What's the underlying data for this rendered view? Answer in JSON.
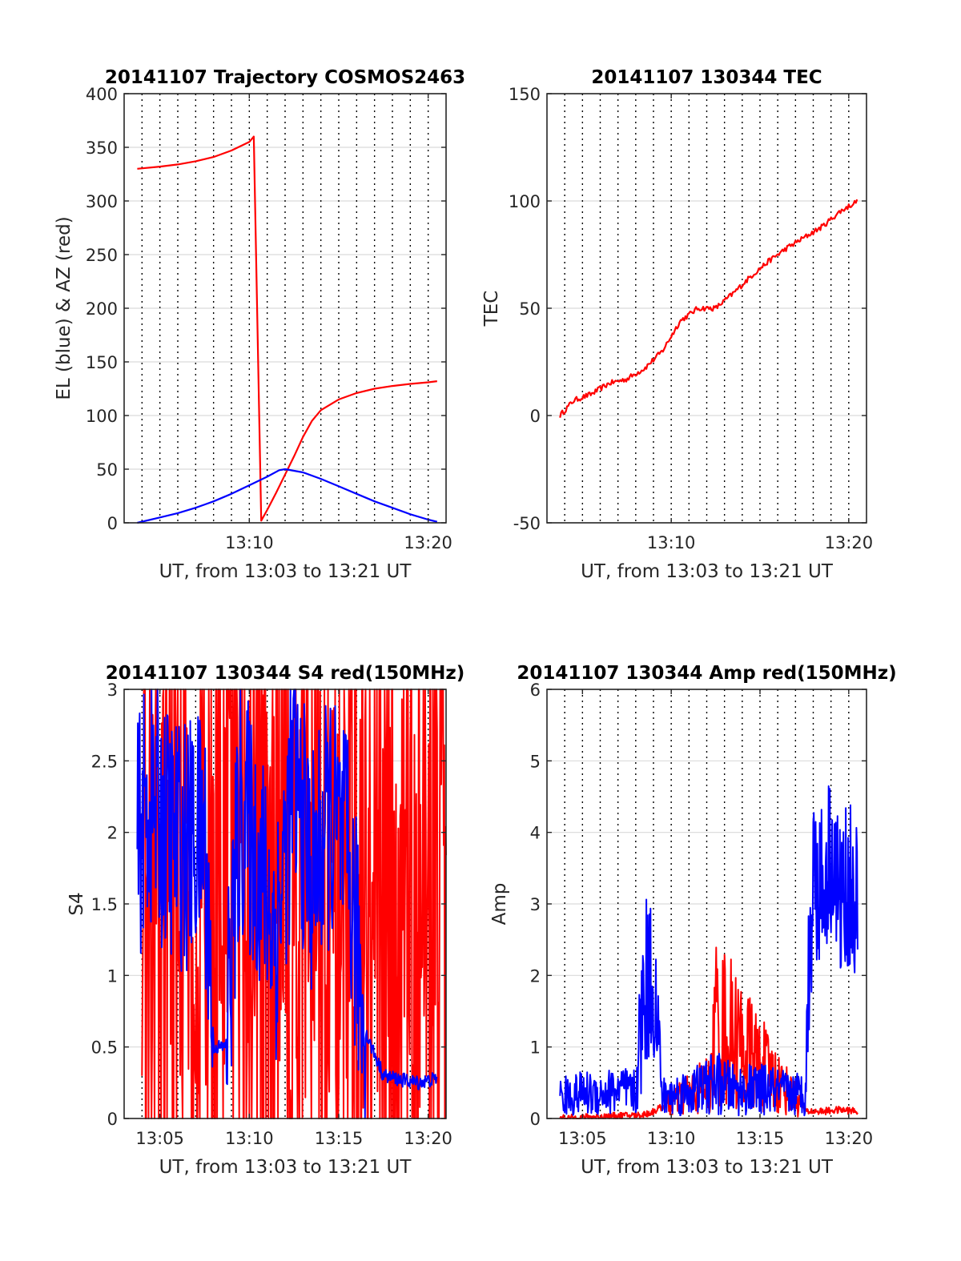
{
  "colors": {
    "red": "#ff0000",
    "blue": "#0000ff",
    "axis": "#262626",
    "grid": "#d9d9d9",
    "minor_grid": "#000000"
  },
  "chart_data": [
    {
      "type": "line",
      "title": "20141107 Trajectory COSMOS2463",
      "xlabel": "UT, from 13:03 to 13:21 UT",
      "ylabel": "EL (blue) & AZ (red)",
      "xlim": [
        "13:03",
        "13:21"
      ],
      "ylim": [
        0,
        400
      ],
      "yticks": [
        "0",
        "50",
        "100",
        "150",
        "200",
        "250",
        "300",
        "350",
        "400"
      ],
      "xticks": [
        "13:10",
        "13:20"
      ],
      "grid": true,
      "series": [
        {
          "color": "red",
          "values_desc": "azimuth",
          "x": [
            "13:03:44",
            "13:05:00",
            "13:06:00",
            "13:07:00",
            "13:08:00",
            "13:09:00",
            "13:10:00",
            "13:10:15",
            "13:10:40",
            "13:11:00",
            "13:11:30",
            "13:12:00",
            "13:12:30",
            "13:13:00",
            "13:13:30",
            "13:14:00",
            "13:15:00",
            "13:16:00",
            "13:17:00",
            "13:18:00",
            "13:19:00",
            "13:20:00",
            "13:20:30"
          ],
          "y": [
            330,
            332,
            334,
            337,
            341,
            347,
            355,
            360,
            2,
            12,
            28,
            45,
            62,
            80,
            95,
            105,
            115,
            121,
            125,
            127.5,
            129.5,
            131,
            132
          ]
        },
        {
          "color": "blue",
          "values_desc": "elevation",
          "x": [
            "13:03:44",
            "13:05:00",
            "13:06:00",
            "13:07:00",
            "13:08:00",
            "13:09:00",
            "13:10:00",
            "13:11:00",
            "13:11:40",
            "13:12:00",
            "13:13:00",
            "13:14:00",
            "13:15:00",
            "13:16:00",
            "13:17:00",
            "13:18:00",
            "13:19:00",
            "13:20:00",
            "13:20:30"
          ],
          "y": [
            0,
            5,
            9,
            14,
            20,
            27,
            35,
            43,
            49,
            50,
            47,
            41,
            34,
            27,
            20,
            14,
            8,
            3,
            1
          ]
        }
      ]
    },
    {
      "type": "line",
      "title": "20141107 130344 TEC",
      "xlabel": "UT, from 13:03 to 13:21 UT",
      "ylabel": "TEC",
      "xlim": [
        "13:03",
        "13:21"
      ],
      "ylim": [
        -50,
        150
      ],
      "yticks": [
        "-50",
        "0",
        "50",
        "100",
        "150"
      ],
      "xticks": [
        "13:10",
        "13:20"
      ],
      "grid": true,
      "series": [
        {
          "color": "red",
          "x": [
            "13:03:44",
            "13:04:30",
            "13:05:30",
            "13:06:30",
            "13:07:30",
            "13:08:30",
            "13:09:30",
            "13:10:30",
            "13:11:30",
            "13:12:30",
            "13:13:30",
            "13:14:30",
            "13:15:30",
            "13:16:30",
            "13:17:30",
            "13:18:30",
            "13:19:30",
            "13:20:30"
          ],
          "y": [
            0,
            7,
            10,
            15,
            17,
            22,
            30,
            44,
            50,
            50,
            57,
            65,
            72,
            78,
            83,
            88,
            95,
            100
          ]
        }
      ]
    },
    {
      "type": "line",
      "title": "20141107 130344 S4 red(150MHz)",
      "xlabel": "UT, from 13:03 to 13:21 UT",
      "ylabel": "S4",
      "xlim": [
        "13:03",
        "13:21"
      ],
      "ylim": [
        0,
        3
      ],
      "yticks": [
        "0",
        "0.5",
        "1",
        "1.5",
        "2",
        "2.5",
        "3"
      ],
      "xticks": [
        "13:05",
        "13:10",
        "13:15",
        "13:20"
      ],
      "grid": true,
      "series": [
        {
          "color": "red",
          "values_desc": "0 to 3 oscillation, densest 13:04-13:08 and 13:17-13:21",
          "x": [
            "13:04",
            "13:05",
            "13:06",
            "13:07",
            "13:08",
            "13:09",
            "13:10",
            "13:11",
            "13:12",
            "13:13",
            "13:14",
            "13:15",
            "13:16",
            "13:17",
            "13:18",
            "13:19",
            "13:20",
            "13:21"
          ],
          "y": [
            1.8,
            2.0,
            1.9,
            1.6,
            1.7,
            2.1,
            2.0,
            1.5,
            1.2,
            1.6,
            2.3,
            1.2,
            2.0,
            0.9,
            1.5,
            1.5,
            1.5,
            1.5
          ]
        },
        {
          "color": "blue",
          "x": [
            "13:03:44",
            "13:04:30",
            "13:05:30",
            "13:06:30",
            "13:07:30",
            "13:08:00",
            "13:08:40",
            "13:09:30",
            "13:10:30",
            "13:11:30",
            "13:12:30",
            "13:13:30",
            "13:14:30",
            "13:15:30",
            "13:16:30",
            "13:17:30",
            "13:18:30",
            "13:19:30",
            "13:20:30"
          ],
          "y": [
            2.0,
            2.2,
            2.0,
            1.9,
            2.0,
            0.5,
            0.5,
            2.2,
            1.8,
            1.3,
            2.4,
            1.7,
            2.1,
            1.8,
            0.6,
            0.3,
            0.27,
            0.25,
            0.28
          ]
        }
      ]
    },
    {
      "type": "line",
      "title": "20141107 130344 Amp red(150MHz)",
      "xlabel": "UT, from 13:03 to 13:21 UT",
      "ylabel": "Amp",
      "xlim": [
        "13:03",
        "13:21"
      ],
      "ylim": [
        0,
        6
      ],
      "yticks": [
        "0",
        "1",
        "2",
        "3",
        "4",
        "5",
        "6"
      ],
      "xticks": [
        "13:05",
        "13:10",
        "13:15",
        "13:20"
      ],
      "grid": true,
      "series": [
        {
          "color": "red",
          "x": [
            "13:03:44",
            "13:08:20",
            "13:08:50",
            "13:12:15",
            "13:12:30",
            "13:17:40",
            "13:18:30",
            "13:19:30",
            "13:20:30"
          ],
          "y": [
            0,
            0.05,
            0.08,
            0.5,
            1.4,
            0.1,
            0.1,
            0.12,
            0.1
          ]
        },
        {
          "color": "blue",
          "x": [
            "13:03:44",
            "13:05:00",
            "13:06:00",
            "13:07:00",
            "13:08:00",
            "13:08:30",
            "13:09:00",
            "13:09:30",
            "13:10:30",
            "13:11:30",
            "13:12:30",
            "13:13:30",
            "13:14:30",
            "13:15:30",
            "13:16:30",
            "13:17:30",
            "13:18:00",
            "13:18:30",
            "13:19:00",
            "13:19:30",
            "13:20:00",
            "13:20:30"
          ],
          "y": [
            0.3,
            0.35,
            0.35,
            0.4,
            0.35,
            1.9,
            2.0,
            0.3,
            0.35,
            0.4,
            0.5,
            0.4,
            0.4,
            0.4,
            0.35,
            0.35,
            3.5,
            3.2,
            3.8,
            3.0,
            3.3,
            2.8
          ]
        }
      ]
    }
  ]
}
